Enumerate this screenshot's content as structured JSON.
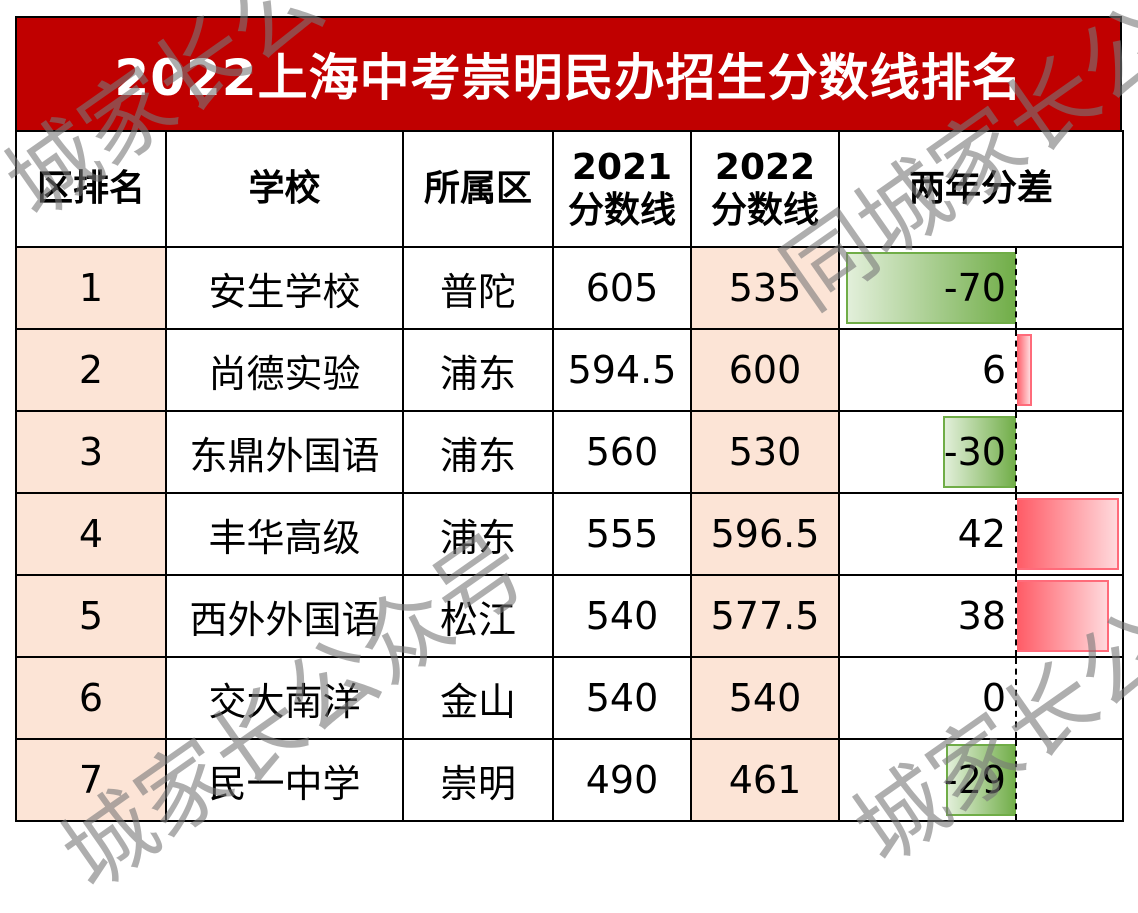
{
  "title": "2022上海中考崇明民办招生分数线排名",
  "columns": {
    "rank": "区排名",
    "school": "学校",
    "district": "所属区",
    "score2021": "2021\n分数线",
    "score2021_year": "2021",
    "score2021_label": "分数线",
    "score2022_year": "2022",
    "score2022_label": "分数线",
    "diff": "两年分差"
  },
  "rows": [
    {
      "rank": "1",
      "school": "安生学校",
      "district": "普陀",
      "score2021": "605",
      "score2022": "535",
      "diff": "-70"
    },
    {
      "rank": "2",
      "school": "尚德实验",
      "district": "浦东",
      "score2021": "594.5",
      "score2022": "600",
      "diff": "6"
    },
    {
      "rank": "3",
      "school": "东鼎外国语",
      "district": "浦东",
      "score2021": "560",
      "score2022": "530",
      "diff": "-30"
    },
    {
      "rank": "4",
      "school": "丰华高级",
      "district": "浦东",
      "score2021": "555",
      "score2022": "596.5",
      "diff": "42"
    },
    {
      "rank": "5",
      "school": "西外外国语",
      "district": "松江",
      "score2021": "540",
      "score2022": "577.5",
      "diff": "38"
    },
    {
      "rank": "6",
      "school": "交大南洋",
      "district": "金山",
      "score2021": "540",
      "score2022": "540",
      "diff": "0"
    },
    {
      "rank": "7",
      "school": "民一中学",
      "district": "崇明",
      "score2021": "490",
      "score2022": "461",
      "diff": "-29"
    }
  ],
  "colors": {
    "title_bg": "#c00000",
    "highlight_bg": "#fce4d6",
    "negative_bar": "#70ad47",
    "positive_bar": "#ff5b66"
  },
  "watermark": "同城家长公众号"
}
